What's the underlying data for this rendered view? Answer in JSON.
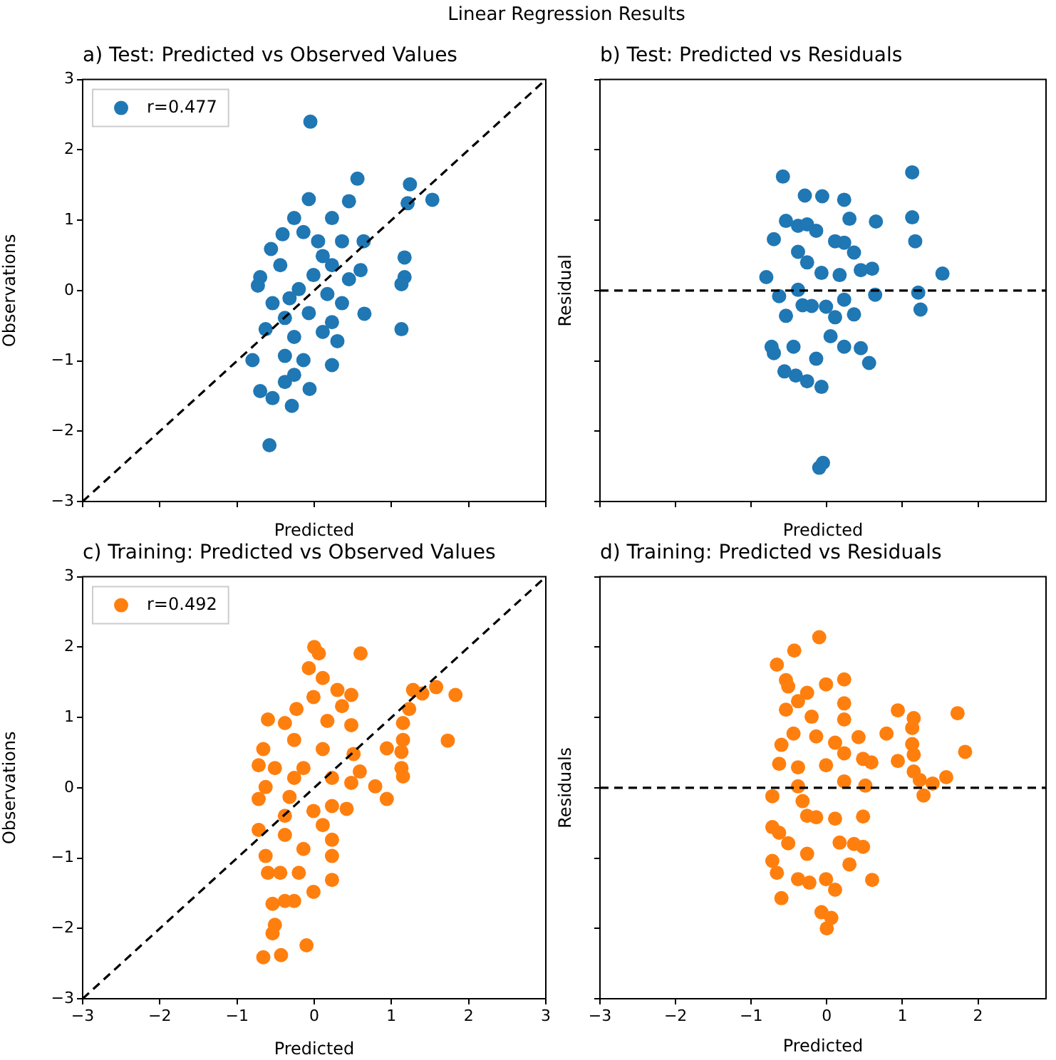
{
  "chart_data": [
    {
      "type": "scatter",
      "title": "a) Test: Predicted vs Observed Values",
      "xlabel": "Predicted",
      "ylabel": "Observations",
      "annotations": [
        "Linear Regression Results"
      ],
      "xlim": [
        -3,
        3
      ],
      "ylim": [
        -3,
        3
      ],
      "xticks": [
        -3,
        -2,
        -1,
        0,
        1,
        2,
        3
      ],
      "yticks": [
        -3,
        -2,
        -1,
        0,
        1,
        2,
        3
      ],
      "tick_labels": "y",
      "legend": "top left",
      "marker": "circle",
      "series": [
        {
          "name": "r=0.477",
          "color": "#1f77b4",
          "x": [
            -0.05,
            0.56,
            1.24,
            1.53,
            1.21,
            1.17,
            1.17,
            1.13,
            1.13,
            0.65,
            0.6,
            0.64,
            0.45,
            -0.07,
            -0.26,
            -0.41,
            -0.56,
            -0.7,
            -0.73,
            -0.8,
            -0.7,
            -0.54,
            -0.29,
            -0.58,
            -0.38,
            -0.06,
            0.23,
            -0.63,
            -0.54,
            -0.44,
            0.23,
            0.05,
            0.23,
            0.36,
            0.45,
            0.17,
            -0.07,
            -0.26,
            0.23,
            -0.14,
            -0.38,
            0.3,
            -0.2,
            -0.01,
            -0.32,
            0.11,
            -0.14,
            0.36,
            -0.38,
            0.11,
            -0.26
          ],
          "values": [
            2.4,
            1.59,
            1.51,
            1.29,
            1.24,
            0.47,
            0.19,
            0.09,
            -0.55,
            -0.33,
            0.29,
            0.7,
            1.27,
            1.3,
            1.03,
            0.8,
            0.59,
            0.19,
            0.07,
            -0.99,
            -1.43,
            -1.53,
            -1.64,
            -2.2,
            -1.3,
            -1.4,
            -1.06,
            -0.55,
            -0.18,
            0.36,
            1.03,
            0.7,
            0.36,
            0.7,
            0.16,
            -0.05,
            -0.32,
            -0.66,
            -0.45,
            -0.99,
            -0.93,
            -0.72,
            0.02,
            0.22,
            -0.11,
            0.49,
            0.83,
            -0.18,
            -0.39,
            -0.59,
            -1.2
          ]
        },
        {
          "type": "line",
          "color": "#000000",
          "line_style": "dashed",
          "marker": "none",
          "x": [
            -3,
            3
          ],
          "values": [
            -3,
            3
          ]
        }
      ]
    },
    {
      "type": "scatter",
      "title": "b) Test: Predicted vs Residuals",
      "xlabel": "Predicted",
      "ylabel": "Residual",
      "xlim": [
        -3,
        2.9
      ],
      "ylim": [
        -3,
        3
      ],
      "xticks": [
        -3,
        -2,
        -1,
        0,
        1,
        2
      ],
      "yticks": [
        -3,
        -2,
        -1,
        0,
        1,
        2,
        3
      ],
      "tick_labels": false,
      "marker": "circle",
      "ref_lines": [
        {
          "axis": "y",
          "value": 0,
          "color": "#000000",
          "line_style": "dashed"
        }
      ],
      "series": [
        {
          "color": "#1f77b4",
          "x": [
            -0.1,
            -0.05,
            0.56,
            1.24,
            1.53,
            1.21,
            1.17,
            1.13,
            1.13,
            0.65,
            0.6,
            0.64,
            0.45,
            -0.07,
            -0.26,
            -0.41,
            -0.56,
            -0.7,
            -0.73,
            -0.8,
            -0.7,
            -0.54,
            -0.29,
            -0.58,
            -0.38,
            -0.06,
            0.23,
            -0.63,
            -0.54,
            -0.44,
            0.23,
            0.05,
            0.23,
            0.36,
            0.45,
            0.17,
            -0.07,
            -0.26,
            0.23,
            -0.14,
            -0.38,
            0.3,
            -0.2,
            -0.01,
            -0.32,
            0.11,
            -0.14,
            0.36,
            -0.38,
            0.11,
            -0.26
          ],
          "values": [
            -2.52,
            -2.45,
            -1.03,
            -0.27,
            0.24,
            -0.03,
            0.7,
            1.04,
            1.68,
            0.98,
            0.31,
            -0.06,
            -0.82,
            -1.37,
            -1.29,
            -1.21,
            -1.15,
            -0.89,
            -0.8,
            0.19,
            0.73,
            0.99,
            1.35,
            1.62,
            0.92,
            1.34,
            1.29,
            -0.08,
            -0.36,
            -0.8,
            -0.8,
            -0.65,
            -0.13,
            -0.34,
            0.29,
            0.22,
            0.25,
            0.4,
            0.68,
            0.85,
            0.55,
            1.02,
            -0.22,
            -0.23,
            -0.21,
            -0.38,
            -0.97,
            0.54,
            0.01,
            0.7,
            0.94
          ]
        }
      ]
    },
    {
      "type": "scatter",
      "title": "c) Training: Predicted vs Observed Values",
      "xlabel": "Predicted",
      "ylabel": "Observations",
      "xlim": [
        -3,
        3
      ],
      "ylim": [
        -3,
        3
      ],
      "xticks": [
        -3,
        -2,
        -1,
        0,
        1,
        2,
        3
      ],
      "yticks": [
        -3,
        -2,
        -1,
        0,
        1,
        2,
        3
      ],
      "legend": "top left",
      "marker": "circle",
      "series": [
        {
          "name": "r=0.492",
          "color": "#ff7f0e",
          "x": [
            0,
            0.06,
            0.6,
            -0.07,
            0.11,
            0.3,
            0.48,
            1.58,
            1.83,
            1.28,
            1.4,
            1.23,
            1.15,
            1.15,
            1.73,
            0.94,
            1.13,
            1.13,
            1.15,
            0.79,
            0.94,
            0.59,
            -0.6,
            -0.38,
            -0.66,
            -0.72,
            -0.72,
            -0.63,
            -0.72,
            -0.63,
            -0.6,
            -0.54,
            -0.38,
            -0.51,
            -0.54,
            -0.66,
            -0.43,
            -0.1,
            -0.26,
            -0.01,
            0.23,
            0.23,
            0.23,
            0.42,
            0.48,
            0.51,
            0.48,
            0.36,
            -0.23,
            -0.26,
            -0.14,
            0.11,
            0.23,
            -0.32,
            -0.01,
            -0.38,
            -0.14,
            0.11,
            -0.44,
            -0.2,
            -0.38,
            0.23,
            0.17,
            -0.01,
            -0.26,
            -0.51
          ],
          "values": [
            2,
            1.91,
            1.91,
            1.7,
            1.56,
            1.39,
            1.32,
            1.43,
            1.32,
            1.39,
            1.34,
            1.12,
            0.92,
            0.68,
            0.67,
            0.56,
            0.51,
            0.28,
            0.16,
            0.02,
            -0.16,
            0.23,
            0.97,
            0.92,
            0.55,
            0.32,
            -0.16,
            0.01,
            -0.6,
            -0.97,
            -1.21,
            -1.65,
            -1.61,
            -1.95,
            -2.07,
            -2.41,
            -2.38,
            -2.24,
            -1.61,
            -1.48,
            -1.31,
            -0.97,
            -0.74,
            -0.3,
            0.07,
            0.48,
            0.89,
            1.16,
            1.12,
            0.68,
            0.28,
            0.55,
            0.14,
            -0.13,
            -0.33,
            -0.67,
            -0.87,
            -0.53,
            -1.21,
            -1.21,
            -0.4,
            -0.26,
            0.95,
            1.29,
            0.14,
            0.28
          ]
        },
        {
          "type": "line",
          "color": "#000000",
          "line_style": "dashed",
          "marker": "none",
          "x": [
            -3,
            3
          ],
          "values": [
            -3,
            3
          ]
        }
      ]
    },
    {
      "type": "scatter",
      "title": "d) Training: Predicted vs Residuals",
      "xlabel": "Predicted",
      "ylabel": "Residuals",
      "xlim": [
        -3,
        2.9
      ],
      "ylim": [
        -3,
        3
      ],
      "xticks": [
        -3,
        -2,
        -1,
        0,
        1,
        2
      ],
      "yticks": [
        -3,
        -2,
        -1,
        0,
        1,
        2,
        3
      ],
      "tick_labels": "x",
      "marker": "circle",
      "ref_lines": [
        {
          "axis": "y",
          "value": 0,
          "color": "#000000",
          "line_style": "dashed"
        }
      ],
      "series": [
        {
          "color": "#ff7f0e",
          "x": [
            0,
            0.06,
            0.6,
            -0.07,
            0.11,
            0.3,
            0.48,
            1.58,
            1.83,
            1.28,
            1.4,
            1.23,
            1.15,
            1.15,
            1.73,
            0.94,
            1.13,
            1.13,
            1.15,
            0.79,
            0.94,
            0.59,
            -0.6,
            -0.38,
            -0.66,
            -0.72,
            -0.72,
            -0.63,
            -0.72,
            -0.63,
            -0.6,
            -0.54,
            -0.38,
            -0.51,
            -0.54,
            -0.66,
            -0.43,
            -0.1,
            -0.26,
            -0.01,
            0.23,
            0.23,
            0.23,
            0.42,
            0.48,
            0.51,
            0.48,
            0.36,
            -0.23,
            -0.26,
            -0.14,
            0.11,
            0.23,
            -0.32,
            -0.01,
            -0.38,
            -0.14,
            0.11,
            -0.44,
            -0.2,
            -0.38,
            0.23,
            0.17,
            -0.01,
            -0.26,
            -0.51
          ],
          "values": [
            -2,
            -1.85,
            -1.31,
            -1.77,
            -1.45,
            -1.09,
            -0.84,
            0.15,
            0.51,
            -0.11,
            0.06,
            0.11,
            0.23,
            0.47,
            1.06,
            0.38,
            0.62,
            0.85,
            0.99,
            0.77,
            1.1,
            0.36,
            -1.57,
            -1.3,
            -1.21,
            -1.04,
            -0.56,
            -0.64,
            -0.12,
            0.34,
            0.61,
            1.11,
            1.23,
            1.44,
            1.53,
            1.75,
            1.95,
            2.14,
            1.35,
            1.47,
            1.54,
            1.2,
            0.97,
            0.72,
            0.41,
            0.03,
            -0.41,
            -0.8,
            -1.35,
            -0.94,
            -0.42,
            -0.44,
            0.09,
            -0.19,
            0.32,
            0.29,
            0.73,
            0.64,
            0.77,
            1.01,
            0.02,
            0.49,
            -0.78,
            -1.3,
            -0.4,
            -0.79
          ]
        }
      ]
    }
  ]
}
